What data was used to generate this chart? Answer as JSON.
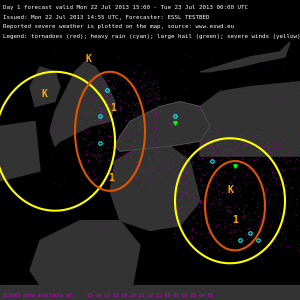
{
  "title_line1": "Day 1 forecast valid Mon 22 Jul 2013 15:00 - Tue 23 Jul 2013 06:00 UTC",
  "title_line2": "Issued: Mon 22 Jul 2013 14:55 UTC, Forecaster: ESSL TESTBED",
  "title_line3": "Reported severe weather is plotted on the map, source: www.eswd.eu",
  "title_line4": "Legend: tornadoes (red); heavy rain (cyan); large hail (green); severe winds (yellow)",
  "header_text_color": "#ffffff",
  "bg_color": "#000000",
  "map_bg": "#111111",
  "land_color": "#333333",
  "sea_color": "#000000",
  "border_color": "#555555",
  "rain_dot_color": "#cc00cc",
  "yellow_outline_color": "#ffff00",
  "orange_outline_color": "#cc6600",
  "red_outline_color": "#ff0000",
  "cyan_dot_color": "#00ffff",
  "green_marker_color": "#00ff00",
  "annotation_color": "#ffaa00",
  "bottom_text_color": "#cc00cc",
  "time_bar_color": "#cc00cc",
  "time_labels": "15 16 17 18 19 20 21 22 23 00 01 02 03 04 05",
  "figsize": [
    3.0,
    3.0
  ],
  "dpi": 100
}
